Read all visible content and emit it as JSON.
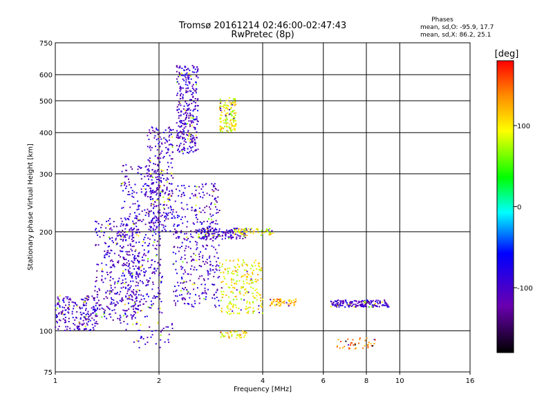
{
  "chart_data": {
    "type": "scatter",
    "title": "Tromsø 20161214 02:46:00-02:47:43",
    "subtitle": "RwPretec (8p)",
    "xlabel": "Frequency [MHz]",
    "ylabel": "Stationary phase Virtual Height [km]",
    "x_scale": "log2",
    "y_scale": "log",
    "xlim": [
      1,
      16
    ],
    "ylim": [
      75,
      750
    ],
    "x_ticks": [
      1,
      2,
      4,
      6,
      8,
      10,
      16
    ],
    "y_ticks": [
      75,
      100,
      200,
      300,
      400,
      500,
      600,
      750
    ],
    "grid": true,
    "stats": {
      "heading": "Phases",
      "line_o": "mean, sd,O: -95.9, 17.7",
      "line_x": "mean, sd,X:  86.2, 25.1"
    },
    "colorbar": {
      "label": "[deg]",
      "range": [
        -180,
        180
      ],
      "ticks": [
        100,
        0,
        -100
      ],
      "colors": [
        "#ff0000",
        "#ff8c00",
        "#ffff00",
        "#00ff00",
        "#00ffff",
        "#0000ff",
        "#6a00b0",
        "#000000"
      ]
    },
    "series": [
      {
        "clusters": [
          {
            "x": [
              1.0,
              1.32
            ],
            "y": [
              100,
              128
            ],
            "phase": -100,
            "n": 200
          },
          {
            "x": [
              1.3,
              1.75
            ],
            "y": [
              105,
              220
            ],
            "phase": -100,
            "n": 350
          },
          {
            "x": [
              1.55,
              2.05
            ],
            "y": [
              110,
              320
            ],
            "phase": -100,
            "n": 420
          },
          {
            "x": [
              1.85,
              2.2
            ],
            "y": [
              200,
              420
            ],
            "phase": -100,
            "n": 260
          },
          {
            "x": [
              2.25,
              2.6
            ],
            "y": [
              345,
              640
            ],
            "phase": -100,
            "n": 320
          },
          {
            "x": [
              2.2,
              3.0
            ],
            "y": [
              118,
              280
            ],
            "phase": -100,
            "n": 380
          },
          {
            "x": [
              2.6,
              3.6
            ],
            "y": [
              190,
              205
            ],
            "phase": -100,
            "n": 140
          },
          {
            "x": [
              3.0,
              3.35
            ],
            "y": [
              400,
              510
            ],
            "phase": 100,
            "n": 140
          },
          {
            "x": [
              3.0,
              4.0
            ],
            "y": [
              112,
              165
            ],
            "phase": 100,
            "n": 220
          },
          {
            "x": [
              3.3,
              4.3
            ],
            "y": [
              195,
              205
            ],
            "phase": 100,
            "n": 60
          },
          {
            "x": [
              4.2,
              5.0
            ],
            "y": [
              119,
              125
            ],
            "phase": 130,
            "n": 60
          },
          {
            "x": [
              6.3,
              9.3
            ],
            "y": [
              118,
              124
            ],
            "phase": -100,
            "n": 170
          },
          {
            "x": [
              6.5,
              8.6
            ],
            "y": [
              88,
              95
            ],
            "phase": 150,
            "n": 40
          },
          {
            "x": [
              3.0,
              3.6
            ],
            "y": [
              95,
              100
            ],
            "phase": 110,
            "n": 40
          },
          {
            "x": [
              1.6,
              2.2
            ],
            "y": [
              88,
              106
            ],
            "phase": -100,
            "n": 40
          }
        ]
      }
    ]
  }
}
